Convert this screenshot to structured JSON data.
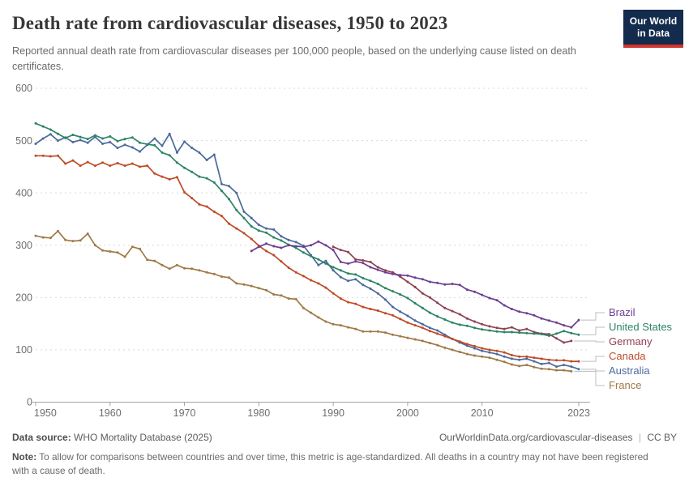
{
  "header": {
    "logo_line1": "Our World",
    "logo_line2": "in Data"
  },
  "chart_data": {
    "type": "line",
    "title": "Death rate from cardiovascular diseases, 1950 to 2023",
    "subtitle": "Reported annual death rate from cardiovascular diseases per 100,000 people, based on the underlying cause listed on death certificates.",
    "xlabel": "",
    "ylabel": "",
    "ylim": [
      0,
      600
    ],
    "y_ticks": [
      0,
      100,
      200,
      300,
      400,
      500,
      600
    ],
    "x_range": [
      1950,
      2023
    ],
    "x_ticks": [
      1950,
      1960,
      1970,
      1980,
      1990,
      2000,
      2010,
      2023
    ],
    "grid": true,
    "legend_position": "right",
    "series": [
      {
        "name": "Brazil",
        "color": "#6D3E91",
        "start_year": 1979,
        "end_year": 2023,
        "values": [
          289,
          297,
          303,
          298,
          295,
          300,
          298,
          297,
          300,
          307,
          300,
          291,
          268,
          265,
          269,
          266,
          258,
          253,
          248,
          245,
          243,
          242,
          238,
          235,
          230,
          228,
          225,
          226,
          224,
          215,
          211,
          205,
          199,
          195,
          185,
          178,
          173,
          170,
          166,
          160,
          156,
          152,
          147,
          143,
          157
        ]
      },
      {
        "name": "United States",
        "color": "#2C8465",
        "start_year": 1950,
        "end_year": 2023,
        "values": [
          533,
          527,
          521,
          513,
          505,
          511,
          507,
          503,
          510,
          504,
          508,
          499,
          503,
          506,
          496,
          493,
          491,
          477,
          472,
          458,
          448,
          440,
          431,
          428,
          420,
          404,
          388,
          367,
          352,
          336,
          328,
          324,
          315,
          309,
          301,
          295,
          286,
          279,
          273,
          265,
          258,
          252,
          246,
          244,
          237,
          232,
          226,
          218,
          212,
          206,
          199,
          189,
          180,
          171,
          164,
          158,
          152,
          148,
          146,
          142,
          139,
          137,
          135,
          134,
          134,
          133,
          132,
          131,
          130,
          127,
          131,
          136,
          132,
          129
        ]
      },
      {
        "name": "Germany",
        "color": "#8E4152",
        "start_year": 1990,
        "end_year": 2022,
        "values": [
          297,
          291,
          287,
          273,
          271,
          268,
          258,
          252,
          248,
          240,
          230,
          220,
          208,
          200,
          190,
          180,
          174,
          168,
          160,
          154,
          149,
          145,
          142,
          140,
          143,
          137,
          140,
          134,
          131,
          130,
          122,
          114,
          117
        ]
      },
      {
        "name": "Canada",
        "color": "#BE4B27",
        "start_year": 1950,
        "end_year": 2023,
        "values": [
          471,
          471,
          470,
          471,
          456,
          462,
          452,
          459,
          452,
          458,
          452,
          457,
          452,
          456,
          450,
          452,
          437,
          431,
          426,
          430,
          401,
          390,
          378,
          374,
          364,
          356,
          341,
          332,
          323,
          312,
          299,
          289,
          281,
          269,
          257,
          248,
          241,
          233,
          227,
          219,
          208,
          198,
          191,
          188,
          182,
          178,
          175,
          170,
          166,
          159,
          152,
          147,
          142,
          136,
          131,
          126,
          121,
          116,
          111,
          107,
          103,
          100,
          98,
          95,
          90,
          87,
          87,
          85,
          83,
          81,
          80,
          80,
          78,
          78
        ]
      },
      {
        "name": "Australia",
        "color": "#4C6A9C",
        "start_year": 1950,
        "end_year": 2023,
        "values": [
          494,
          504,
          512,
          500,
          506,
          497,
          501,
          496,
          507,
          494,
          497,
          486,
          492,
          487,
          479,
          492,
          504,
          490,
          513,
          477,
          498,
          486,
          477,
          463,
          473,
          417,
          413,
          400,
          364,
          352,
          339,
          332,
          330,
          317,
          310,
          306,
          299,
          281,
          262,
          270,
          252,
          239,
          232,
          235,
          224,
          217,
          208,
          196,
          182,
          173,
          165,
          156,
          149,
          142,
          137,
          129,
          121,
          114,
          108,
          103,
          98,
          95,
          92,
          87,
          83,
          81,
          83,
          78,
          73,
          75,
          68,
          71,
          68,
          63
        ]
      },
      {
        "name": "France",
        "color": "#9F7A47",
        "start_year": 1950,
        "end_year": 2022,
        "values": [
          318,
          315,
          314,
          327,
          310,
          308,
          309,
          322,
          300,
          290,
          288,
          286,
          278,
          297,
          293,
          272,
          270,
          262,
          255,
          262,
          256,
          255,
          252,
          248,
          245,
          240,
          238,
          227,
          225,
          222,
          218,
          214,
          206,
          204,
          198,
          197,
          180,
          171,
          162,
          154,
          149,
          147,
          143,
          140,
          135,
          135,
          135,
          133,
          129,
          126,
          123,
          120,
          117,
          113,
          109,
          104,
          100,
          96,
          92,
          89,
          87,
          85,
          81,
          77,
          72,
          69,
          71,
          67,
          64,
          63,
          61,
          61,
          59
        ]
      }
    ]
  },
  "footer": {
    "datasource_label": "Data source:",
    "datasource_value": "WHO Mortality Database (2025)",
    "url": "OurWorldinData.org/cardiovascular-diseases",
    "separator": "|",
    "license": "CC BY",
    "note_label": "Note:",
    "note_text": "To allow for comparisons between countries and over time, this metric is age-standardized. All deaths in a country may not have been registered with a cause of death."
  },
  "theme": {
    "title": "#373737",
    "subtitle": "#6b6b6b",
    "footer": "#5c5c5c",
    "note": "#6b6b6b",
    "axis": "#a3a3a3",
    "grid": "#d9d9d9",
    "tick_text": "#6e6e6e",
    "leader": "#bcbcbc",
    "logo_bg": "#132B4D",
    "logo_bar": "#D0342C"
  }
}
